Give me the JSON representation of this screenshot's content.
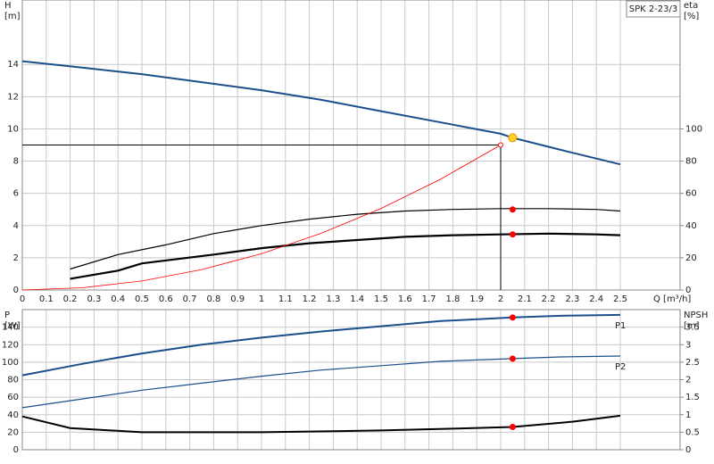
{
  "chart_data": [
    {
      "type": "line",
      "title": "SPK 2-23/3",
      "y_label": "H",
      "y_unit": "[m]",
      "y2_label": "eta",
      "y2_unit": "[%]",
      "x_label": "Q [m³/h]",
      "xlim": [
        0,
        2.75
      ],
      "xticks": [
        0,
        0.1,
        0.2,
        0.3,
        0.4,
        0.5,
        0.6,
        0.7,
        0.8,
        0.9,
        1,
        1.1,
        1.2,
        1.3,
        1.4,
        1.5,
        1.6,
        1.7,
        1.8,
        1.9,
        2,
        2.1,
        2.2,
        2.3,
        2.4,
        2.5
      ],
      "ylim": [
        0,
        18
      ],
      "yticks": [
        0,
        2,
        4,
        6,
        8,
        10,
        12,
        14
      ],
      "y2lim": [
        0,
        180
      ],
      "y2ticks": [
        0,
        20,
        40,
        60,
        80,
        100
      ],
      "grid": true,
      "series": [
        {
          "color": "#1b4f8c",
          "line_width": 2,
          "x": [
            0,
            0.25,
            0.5,
            0.75,
            1,
            1.25,
            1.5,
            1.75,
            2,
            2.05,
            2.25,
            2.5
          ],
          "values": [
            14.2,
            13.8,
            13.4,
            12.9,
            12.4,
            11.8,
            11.1,
            10.4,
            9.7,
            9.45,
            8.7,
            7.8
          ]
        },
        {
          "color": "#000000",
          "line_width": 1.2,
          "axis": "y2",
          "x": [
            0.2,
            0.4,
            0.6,
            0.8,
            1,
            1.2,
            1.4,
            1.6,
            1.8,
            2,
            2.2,
            2.4,
            2.5
          ],
          "values": [
            13,
            22,
            28,
            35,
            40,
            44,
            47,
            49,
            50,
            50.5,
            50.5,
            50,
            49
          ]
        },
        {
          "color": "#000000",
          "line_width": 2.2,
          "axis": "y2",
          "x": [
            0.2,
            0.4,
            0.5,
            0.8,
            1,
            1.2,
            1.4,
            1.6,
            1.8,
            2,
            2.2,
            2.4,
            2.5
          ],
          "values": [
            7,
            12,
            16.5,
            22,
            26,
            29,
            31,
            33,
            34,
            34.5,
            35,
            34.5,
            34
          ]
        },
        {
          "color": "#ff0000",
          "line_width": 0.8,
          "x": [
            0,
            0.25,
            0.5,
            0.75,
            1,
            1.25,
            1.5,
            1.75,
            2
          ],
          "values": [
            0,
            0.14,
            0.56,
            1.27,
            2.25,
            3.52,
            5.06,
            6.89,
            9
          ]
        }
      ],
      "duty_lines": {
        "x": 2,
        "y": 9
      },
      "duty_point": {
        "x": 2.05,
        "y": 9.45,
        "color": "#ffd21f"
      },
      "points": [
        {
          "x": 2.05,
          "y": 50,
          "axis": "y2",
          "color": "#ff0000"
        },
        {
          "x": 2.05,
          "y": 34.5,
          "axis": "y2",
          "color": "#ff0000"
        }
      ]
    },
    {
      "type": "line",
      "y_label": "P",
      "y_unit": "[W]",
      "y2_label": "NPSH",
      "y2_unit": "[m]",
      "ylim": [
        0,
        160
      ],
      "yticks": [
        0,
        20,
        40,
        60,
        80,
        100,
        120,
        140
      ],
      "y2lim": [
        0,
        4
      ],
      "y2ticks": [
        0,
        0.5,
        1,
        1.5,
        2,
        2.5,
        3,
        3.5
      ],
      "grid": true,
      "series": [
        {
          "name": "P1",
          "color": "#1b4f8c",
          "line_width": 2,
          "x": [
            0,
            0.25,
            0.5,
            0.75,
            1,
            1.25,
            1.5,
            1.75,
            2.05,
            2.25,
            2.5
          ],
          "values": [
            85,
            98,
            110,
            120,
            128,
            135,
            141,
            147,
            151,
            153,
            154
          ]
        },
        {
          "name": "P2",
          "color": "#1b4f8c",
          "line_width": 1.2,
          "x": [
            0,
            0.25,
            0.5,
            0.75,
            1,
            1.25,
            1.5,
            1.75,
            2.05,
            2.25,
            2.5
          ],
          "values": [
            48,
            58,
            68,
            76,
            84,
            91,
            96,
            101,
            104,
            106,
            107
          ]
        },
        {
          "color": "#000000",
          "line_width": 2,
          "axis": "y2",
          "x": [
            0,
            0.2,
            0.5,
            1,
            1.5,
            1.8,
            2.05,
            2.3,
            2.5
          ],
          "values": [
            0.95,
            0.62,
            0.5,
            0.5,
            0.55,
            0.6,
            0.65,
            0.8,
            0.97
          ]
        }
      ],
      "points": [
        {
          "x": 2.05,
          "y": 151,
          "color": "#ff0000"
        },
        {
          "x": 2.05,
          "y": 104,
          "color": "#ff0000"
        },
        {
          "x": 2.05,
          "y": 0.65,
          "axis": "y2",
          "color": "#ff0000"
        }
      ]
    }
  ]
}
